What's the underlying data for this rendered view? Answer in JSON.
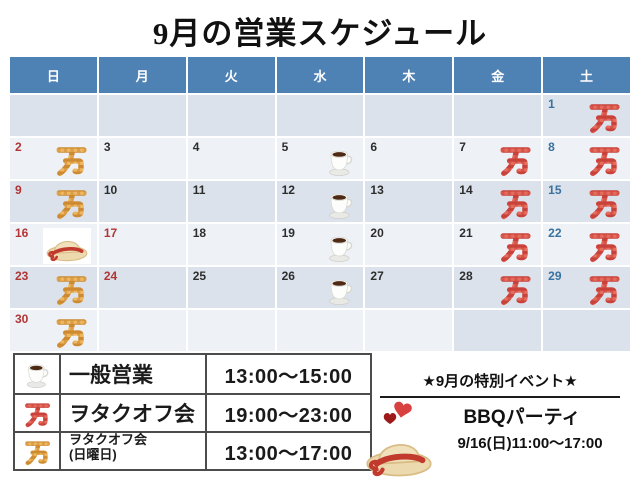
{
  "title": "9月の営業スケジュール",
  "calendar": {
    "day_headers": [
      "日",
      "月",
      "火",
      "水",
      "木",
      "金",
      "土"
    ],
    "weeks": [
      [
        {},
        {},
        {},
        {},
        {},
        {},
        {
          "date": "1",
          "icon": "man-red"
        }
      ],
      [
        {
          "date": "2",
          "icon": "man-orange"
        },
        {
          "date": "3"
        },
        {
          "date": "4"
        },
        {
          "date": "5",
          "icon": "coffee"
        },
        {
          "date": "6"
        },
        {
          "date": "7",
          "icon": "man-red"
        },
        {
          "date": "8",
          "icon": "man-red"
        }
      ],
      [
        {
          "date": "9",
          "icon": "man-orange"
        },
        {
          "date": "10"
        },
        {
          "date": "11"
        },
        {
          "date": "12",
          "icon": "coffee"
        },
        {
          "date": "13"
        },
        {
          "date": "14",
          "icon": "man-red"
        },
        {
          "date": "15",
          "icon": "man-red"
        }
      ],
      [
        {
          "date": "16",
          "icon": "hat"
        },
        {
          "date": "17",
          "holiday": true
        },
        {
          "date": "18"
        },
        {
          "date": "19",
          "icon": "coffee"
        },
        {
          "date": "20"
        },
        {
          "date": "21",
          "icon": "man-red"
        },
        {
          "date": "22",
          "icon": "man-red"
        }
      ],
      [
        {
          "date": "23",
          "icon": "man-orange"
        },
        {
          "date": "24",
          "holiday": true
        },
        {
          "date": "25"
        },
        {
          "date": "26",
          "icon": "coffee"
        },
        {
          "date": "27"
        },
        {
          "date": "28",
          "icon": "man-red"
        },
        {
          "date": "29",
          "icon": "man-red"
        }
      ],
      [
        {
          "date": "30",
          "icon": "man-orange"
        },
        {},
        {},
        {},
        {},
        {},
        {}
      ]
    ]
  },
  "legend": {
    "rows": [
      {
        "icon": "coffee-cup-icon",
        "label": "一般営業",
        "time": "13:00～15:00"
      },
      {
        "icon": "red-plaid-man-icon",
        "label": "ヲタクオフ会",
        "time": "19:00～23:00"
      },
      {
        "icon": "orange-plaid-man-icon",
        "label": "ヲタクオフ会",
        "sublabel": "(日曜日)",
        "time": "13:00～17:00"
      }
    ]
  },
  "special_event": {
    "title": "★9月の特別イベント★",
    "name": "BBQパーティ",
    "schedule": "9/16(日)11:00～17:00"
  },
  "colors": {
    "header_bg": "#4e81b4",
    "row_dark": "#dbe2eb",
    "row_light": "#eef1f6",
    "sunday_holiday_date": "#b23434",
    "saturday_date": "#39729f",
    "weekday_date": "#2d2d2d",
    "man_red": "#c8413a",
    "man_orange": "#cd8a30",
    "heart_red": "#d94040"
  }
}
